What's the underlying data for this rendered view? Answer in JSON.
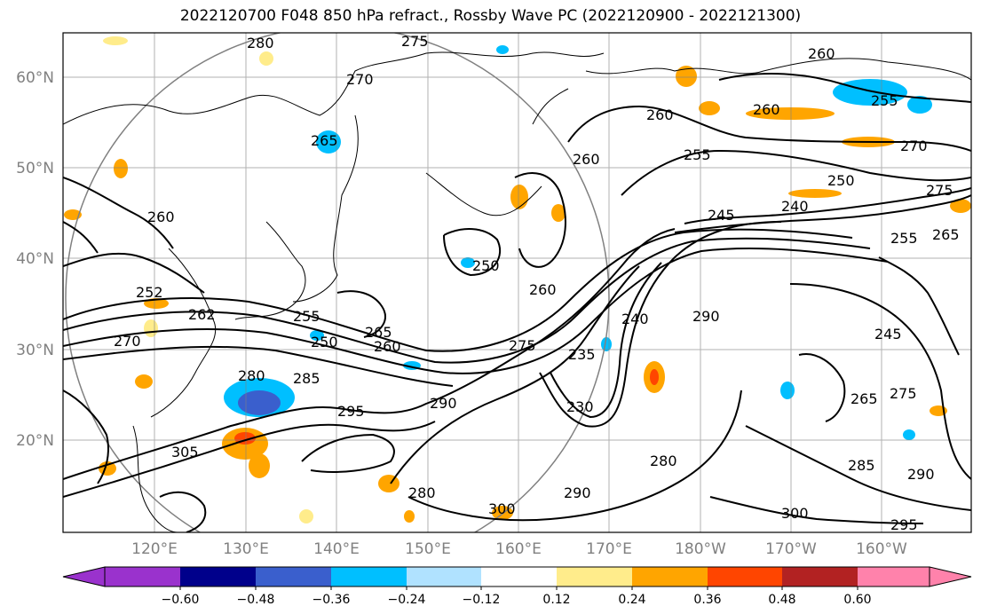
{
  "title": "2022120700 F048 850 hPa refract., Rossby Wave PC (2022120900 - 2022121300)",
  "map": {
    "lat_labels": [
      "60°N",
      "50°N",
      "40°N",
      "30°N",
      "20°N"
    ],
    "lon_labels": [
      "120°E",
      "130°E",
      "140°E",
      "150°E",
      "160°E",
      "170°E",
      "180°W",
      "170°W",
      "160°W"
    ],
    "contour_labels": [
      "280",
      "275",
      "270",
      "260",
      "265",
      "260",
      "255",
      "250",
      "240",
      "245",
      "255",
      "265",
      "275",
      "260",
      "260",
      "260",
      "255",
      "252",
      "262",
      "265",
      "260",
      "250",
      "270",
      "280",
      "285",
      "295",
      "290",
      "275",
      "235",
      "230",
      "240",
      "290",
      "245",
      "265",
      "275",
      "290",
      "280",
      "290",
      "280",
      "305",
      "300",
      "300",
      "295",
      "260",
      "250",
      "285",
      "270",
      "255"
    ],
    "land_color": "#000000",
    "grid_color": "#808080"
  },
  "colorbar": {
    "ticks": [
      "−0.60",
      "−0.48",
      "−0.36",
      "−0.24",
      "−0.12",
      "0.12",
      "0.24",
      "0.36",
      "0.48",
      "0.60"
    ],
    "colors": [
      "#9a32cd",
      "#00008b",
      "#3a5fcd",
      "#00bfff",
      "#b0e2ff",
      "#ffffff",
      "#ffec8b",
      "#ffa500",
      "#ff4500",
      "#b22222",
      "#ff82ab",
      "#ff82ab"
    ]
  }
}
